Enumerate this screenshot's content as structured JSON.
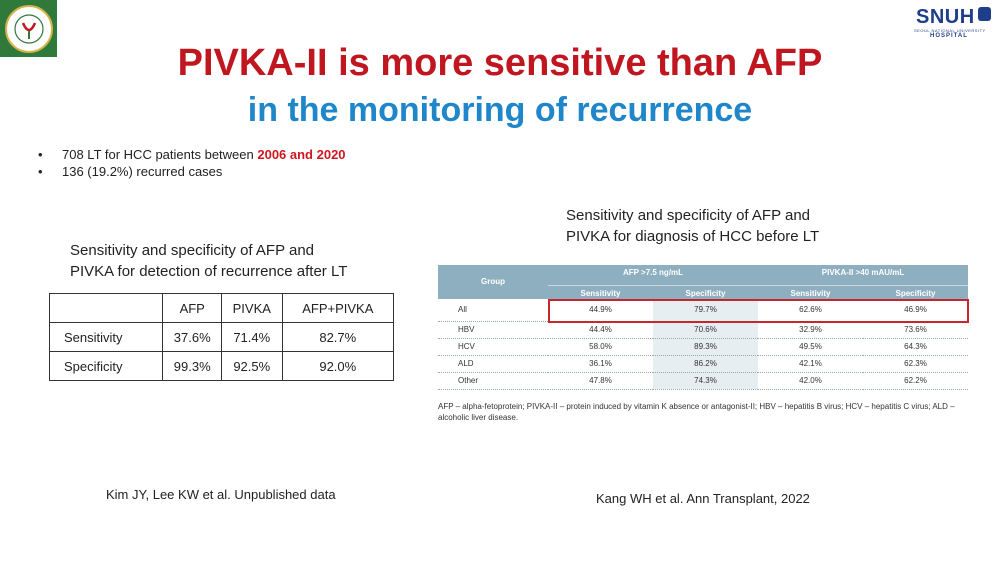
{
  "logos": {
    "right_name": "SNUH",
    "right_sub1": "SEOUL NATIONAL UNIVERSITY",
    "right_sub2": "HOSPITAL"
  },
  "title": {
    "line1": "PIVKA-II is more sensitive than AFP",
    "line2": "in the monitoring of recurrence"
  },
  "bullets": [
    {
      "text": "708 LT for HCC patients between ",
      "highlight": "2006 and 2020"
    },
    {
      "text": "136 (19.2%) recurred cases",
      "highlight": ""
    }
  ],
  "left_caption": [
    "Sensitivity and specificity of AFP and",
    "PIVKA for detection of recurrence after LT"
  ],
  "left_table": {
    "columns": [
      "",
      "AFP",
      "PIVKA",
      "AFP+PIVKA"
    ],
    "rows": [
      [
        "Sensitivity",
        "37.6%",
        "71.4%",
        "82.7%"
      ],
      [
        "Specificity",
        "99.3%",
        "92.5%",
        "92.0%"
      ]
    ]
  },
  "right_caption": [
    "Sensitivity and specificity of AFP and",
    "PIVKA for diagnosis of HCC before LT"
  ],
  "right_table": {
    "group_label": "Group",
    "afp_label": "AFP >7.5 ng/mL",
    "pivka_label": "PIVKA-II >40 mAU/mL",
    "sub_labels": [
      "Sensitivity",
      "Specificity",
      "Sensitivity",
      "Specificity"
    ],
    "rows": [
      [
        "All",
        "44.9%",
        "79.7%",
        "62.6%",
        "46.9%"
      ],
      [
        "HBV",
        "44.4%",
        "70.6%",
        "32.9%",
        "73.6%"
      ],
      [
        "HCV",
        "58.0%",
        "89.3%",
        "49.5%",
        "64.3%"
      ],
      [
        "ALD",
        "36.1%",
        "86.2%",
        "42.1%",
        "62.3%"
      ],
      [
        "Other",
        "47.8%",
        "74.3%",
        "42.0%",
        "62.2%"
      ]
    ],
    "footnote": "AFP – alpha-fetoprotein; PIVKA-II – protein induced by vitamin K absence or antagonist-II; HBV – hepatitis B virus; HCV – hepatitis C virus; ALD – alcoholic liver disease."
  },
  "references": {
    "left": "Kim JY, Lee KW et al. Unpublished data",
    "right": "Kang WH et al. Ann Transplant, 2022"
  },
  "colors": {
    "title_red": "#c0161f",
    "title_blue": "#1f86c9",
    "highlight_box": "#c8262d",
    "table_header": "#8eafc0"
  }
}
